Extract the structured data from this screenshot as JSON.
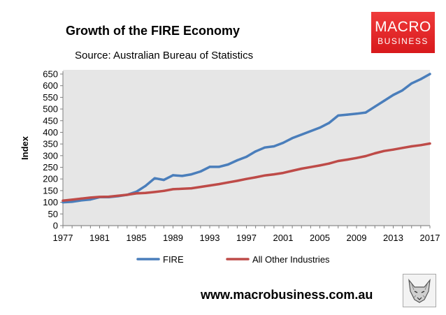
{
  "header": {
    "title": "Growth of the FIRE Economy",
    "subtitle": "Source: Australian Bureau of Statistics"
  },
  "logo": {
    "line1": "MACRO",
    "line2": "BUSINESS",
    "color": "#e02124"
  },
  "footer": {
    "url": "www.macrobusiness.com.au",
    "icon": "fox-icon"
  },
  "chart_data": {
    "type": "line",
    "title": "Growth of the FIRE Economy",
    "subtitle": "Source: Australian Bureau of Statistics",
    "xlabel": "",
    "ylabel": "Index",
    "xlim": [
      1977,
      2017
    ],
    "ylim": [
      0,
      650
    ],
    "x_ticks": [
      1977,
      1981,
      1985,
      1989,
      1993,
      1997,
      2001,
      2005,
      2009,
      2013,
      2017
    ],
    "y_ticks": [
      0,
      50,
      100,
      150,
      200,
      250,
      300,
      350,
      400,
      450,
      500,
      550,
      600,
      650
    ],
    "grid": false,
    "plot_background": "#e6e6e6",
    "legend": "bottom",
    "x": [
      1977,
      1978,
      1979,
      1980,
      1981,
      1982,
      1983,
      1984,
      1985,
      1986,
      1987,
      1988,
      1989,
      1990,
      1991,
      1992,
      1993,
      1994,
      1995,
      1996,
      1997,
      1998,
      1999,
      2000,
      2001,
      2002,
      2003,
      2004,
      2005,
      2006,
      2007,
      2008,
      2009,
      2010,
      2011,
      2012,
      2013,
      2014,
      2015,
      2016,
      2017
    ],
    "series": [
      {
        "name": "FIRE",
        "color": "#4a7ebb",
        "values": [
          100,
          102,
          108,
          112,
          122,
          122,
          126,
          132,
          145,
          170,
          203,
          196,
          216,
          213,
          220,
          232,
          252,
          252,
          262,
          280,
          295,
          318,
          335,
          340,
          355,
          375,
          390,
          405,
          420,
          440,
          472,
          476,
          480,
          485,
          510,
          535,
          560,
          580,
          610,
          628,
          650
        ]
      },
      {
        "name": "All Other Industries",
        "color": "#be4b48",
        "values": [
          107,
          111,
          116,
          120,
          123,
          124,
          128,
          132,
          138,
          140,
          144,
          149,
          156,
          158,
          160,
          166,
          172,
          178,
          185,
          192,
          200,
          207,
          215,
          220,
          226,
          235,
          244,
          251,
          258,
          266,
          277,
          283,
          290,
          298,
          310,
          320,
          326,
          333,
          340,
          345,
          352
        ]
      }
    ]
  }
}
